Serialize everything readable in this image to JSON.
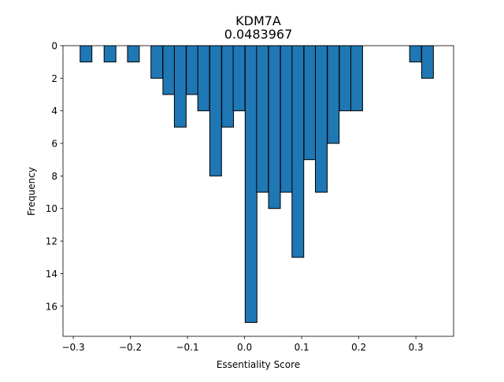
{
  "chart_data": {
    "type": "bar",
    "title": "KDM7A",
    "subtitle": "0.0483967",
    "xlabel": "Essentiality Score",
    "ylabel": "Frequency",
    "xlim": [
      -0.318,
      0.366
    ],
    "ylim": [
      0,
      17.85
    ],
    "y_inverted": true,
    "grid": false,
    "bar_color": "#1f77b4",
    "edge_color": "#000000",
    "bin_width": 0.0206,
    "x_ticks": [
      -0.3,
      -0.2,
      -0.1,
      0.0,
      0.1,
      0.2,
      0.3
    ],
    "x_tick_labels": [
      "−0.3",
      "−0.2",
      "−0.1",
      "0.0",
      "0.1",
      "0.2",
      "0.3"
    ],
    "y_ticks": [
      0,
      2,
      4,
      6,
      8,
      10,
      12,
      14,
      16
    ],
    "y_tick_labels": [
      "0",
      "2",
      "4",
      "6",
      "8",
      "10",
      "12",
      "14",
      "16"
    ],
    "bins": [
      {
        "x": -0.288,
        "count": 1
      },
      {
        "x": -0.246,
        "count": 1
      },
      {
        "x": -0.205,
        "count": 1
      },
      {
        "x": -0.164,
        "count": 2
      },
      {
        "x": -0.143,
        "count": 3
      },
      {
        "x": -0.123,
        "count": 5
      },
      {
        "x": -0.102,
        "count": 3
      },
      {
        "x": -0.082,
        "count": 4
      },
      {
        "x": -0.061,
        "count": 8
      },
      {
        "x": -0.04,
        "count": 5
      },
      {
        "x": -0.02,
        "count": 4
      },
      {
        "x": 0.001,
        "count": 17
      },
      {
        "x": 0.021,
        "count": 9
      },
      {
        "x": 0.042,
        "count": 10
      },
      {
        "x": 0.063,
        "count": 9
      },
      {
        "x": 0.083,
        "count": 13
      },
      {
        "x": 0.104,
        "count": 7
      },
      {
        "x": 0.124,
        "count": 9
      },
      {
        "x": 0.145,
        "count": 6
      },
      {
        "x": 0.166,
        "count": 4
      },
      {
        "x": 0.186,
        "count": 4
      },
      {
        "x": 0.289,
        "count": 1
      },
      {
        "x": 0.31,
        "count": 2
      }
    ]
  }
}
